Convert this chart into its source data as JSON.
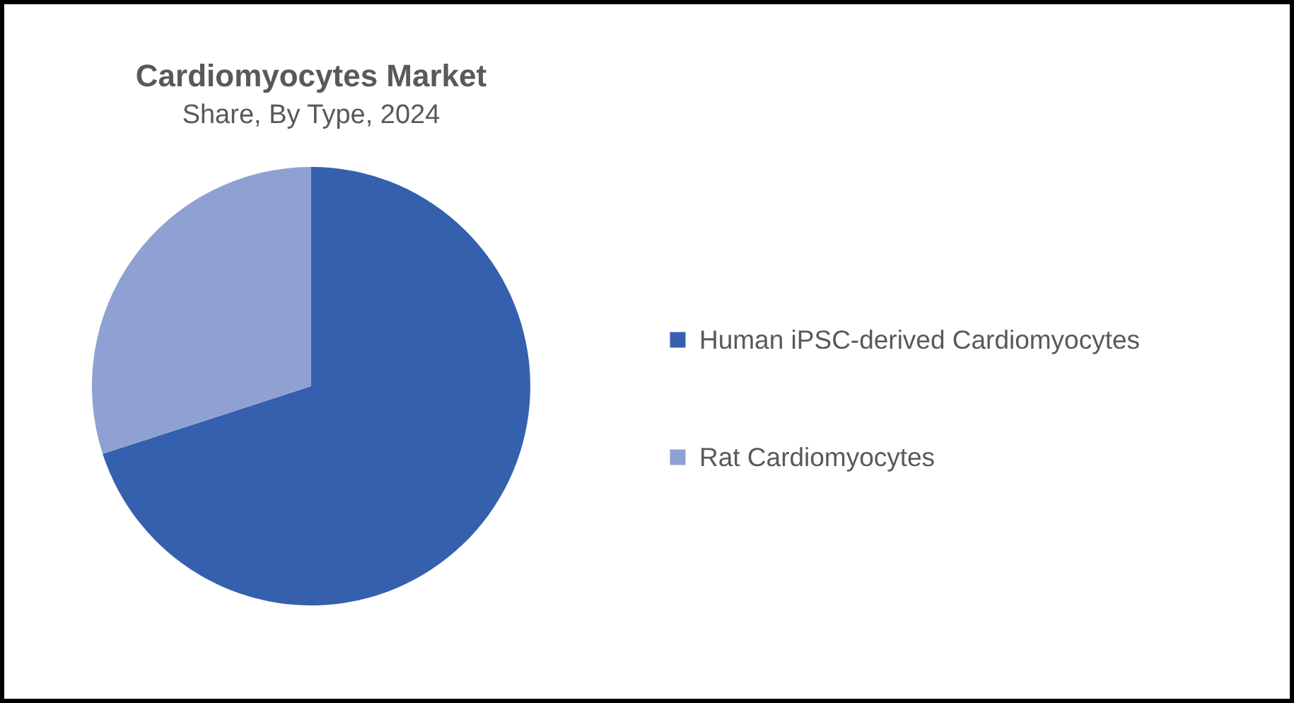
{
  "chart_data": {
    "type": "pie",
    "title": "Cardiomyocytes Market",
    "subtitle": "Share, By Type, 2024",
    "categories": [
      "Human iPSC-derived Cardiomyocytes",
      "Rat Cardiomyocytes"
    ],
    "values": [
      70,
      30
    ],
    "colors": [
      "#3560ae",
      "#8fa1d3"
    ],
    "legend": "right"
  }
}
